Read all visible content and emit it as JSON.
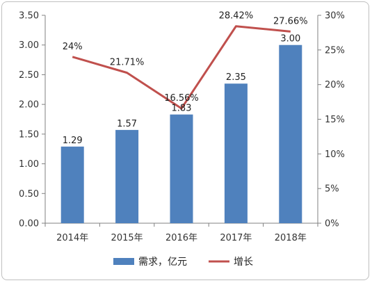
{
  "chart_data": {
    "type": "bar",
    "categories": [
      "2014年",
      "2015年",
      "2016年",
      "2017年",
      "2018年"
    ],
    "series": [
      {
        "name": "需求，亿元",
        "type": "bar",
        "axis": "left",
        "values": [
          1.29,
          1.57,
          1.83,
          2.35,
          3.0
        ],
        "labels": [
          "1.29",
          "1.57",
          "1.83",
          "2.35",
          "3.00"
        ]
      },
      {
        "name": "增长",
        "type": "line",
        "axis": "right",
        "values": [
          24,
          21.71,
          16.56,
          28.42,
          27.66
        ],
        "labels": [
          "24%",
          "21.71%",
          "16.56%",
          "28.42%",
          "27.66%"
        ]
      }
    ],
    "y_left": {
      "min": 0,
      "max": 3.5,
      "ticks": [
        "0.00",
        "0.50",
        "1.00",
        "1.50",
        "2.00",
        "2.50",
        "3.00",
        "3.50"
      ]
    },
    "y_right": {
      "min": 0,
      "max": 30,
      "ticks": [
        "0%",
        "5%",
        "10%",
        "15%",
        "20%",
        "25%",
        "30%"
      ]
    },
    "grid": false,
    "legend_position": "bottom",
    "colors": {
      "bar": "#4f81bd",
      "line": "#c0504d",
      "axis": "#808080"
    }
  }
}
